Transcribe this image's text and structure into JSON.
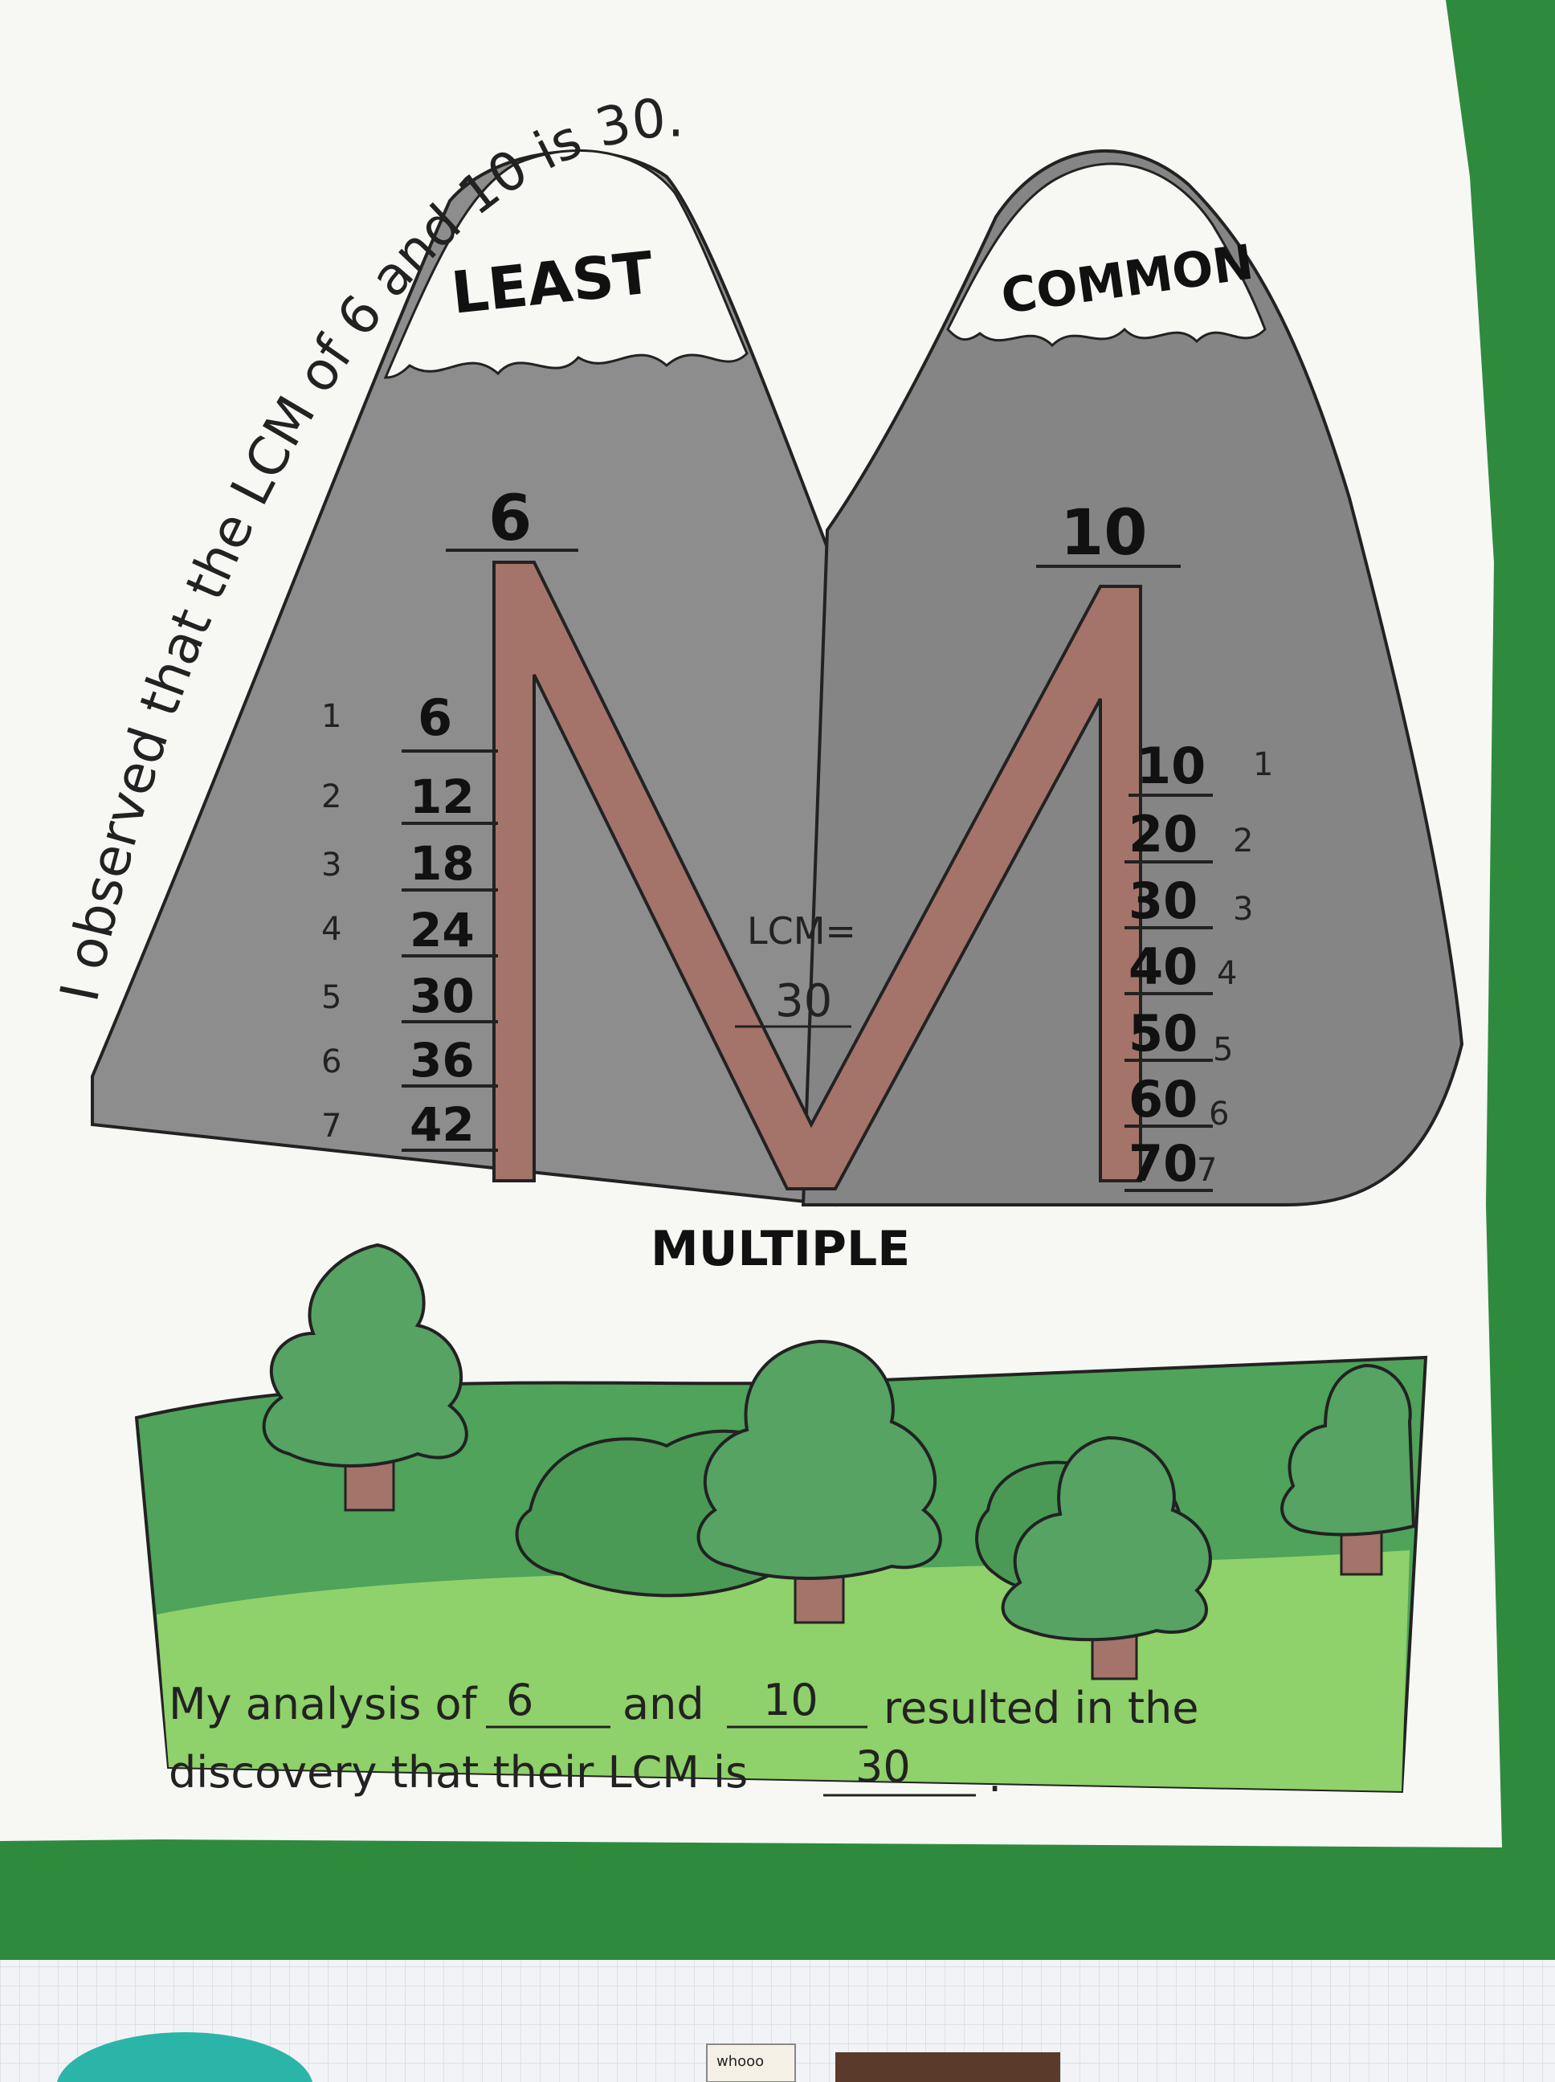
{
  "arc_sentence": "I observed that the LCM of 6 and 10 is 30.",
  "peaks": {
    "left": "LEAST",
    "right": "COMMON"
  },
  "bottom_word": "MULTIPLE",
  "left_column": {
    "number": "6",
    "indices": [
      "1",
      "2",
      "3",
      "4",
      "5",
      "6",
      "7"
    ],
    "multiples": [
      "6",
      "12",
      "18",
      "24",
      "30",
      "36",
      "42"
    ]
  },
  "right_column": {
    "number": "10",
    "indices": [
      "1",
      "2",
      "3",
      "4",
      "5",
      "6",
      "7"
    ],
    "multiples": [
      "10",
      "20",
      "30",
      "40",
      "50",
      "60",
      "70"
    ]
  },
  "lcm": {
    "label": "LCM=",
    "value": "30"
  },
  "sentence": {
    "line1_a": "My analysis of",
    "blank1": "6",
    "line1_b": "and",
    "blank2": "10",
    "line1_c": "resulted in the",
    "line2_a": "discovery that their LCM is",
    "blank3": "30",
    "line2_b": "."
  },
  "sticker_text": "whooo",
  "colors": {
    "board_green": "#2e8b3e",
    "paper": "#f7f7f4",
    "mountain_gray": "#8a8a8a",
    "letter_m_brown": "#a4736a",
    "tree_green": "#4f9a5c",
    "grass_light": "#8fd16a"
  }
}
